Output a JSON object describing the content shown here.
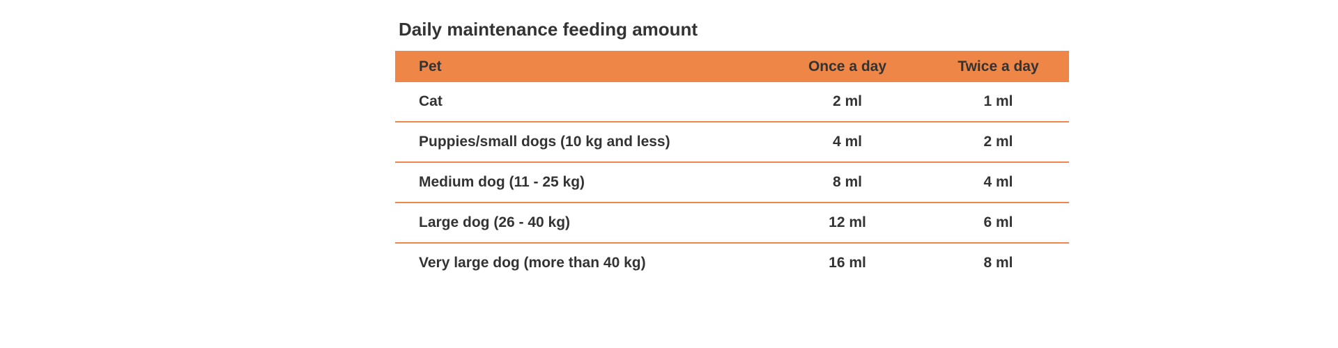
{
  "title": "Daily maintenance feeding amount",
  "table": {
    "header": [
      "Pet",
      "Once a day",
      "Twice a day"
    ],
    "rows": [
      [
        "Cat",
        "2 ml",
        "1 ml"
      ],
      [
        "Puppies/small dogs (10 kg and less)",
        "4 ml",
        "2 ml"
      ],
      [
        "Medium dog (11 - 25 kg)",
        "8 ml",
        "4 ml"
      ],
      [
        "Large dog (26 - 40 kg)",
        "12 ml",
        "6 ml"
      ],
      [
        "Very large dog (more than 40 kg)",
        "16 ml",
        "8 ml"
      ]
    ]
  }
}
